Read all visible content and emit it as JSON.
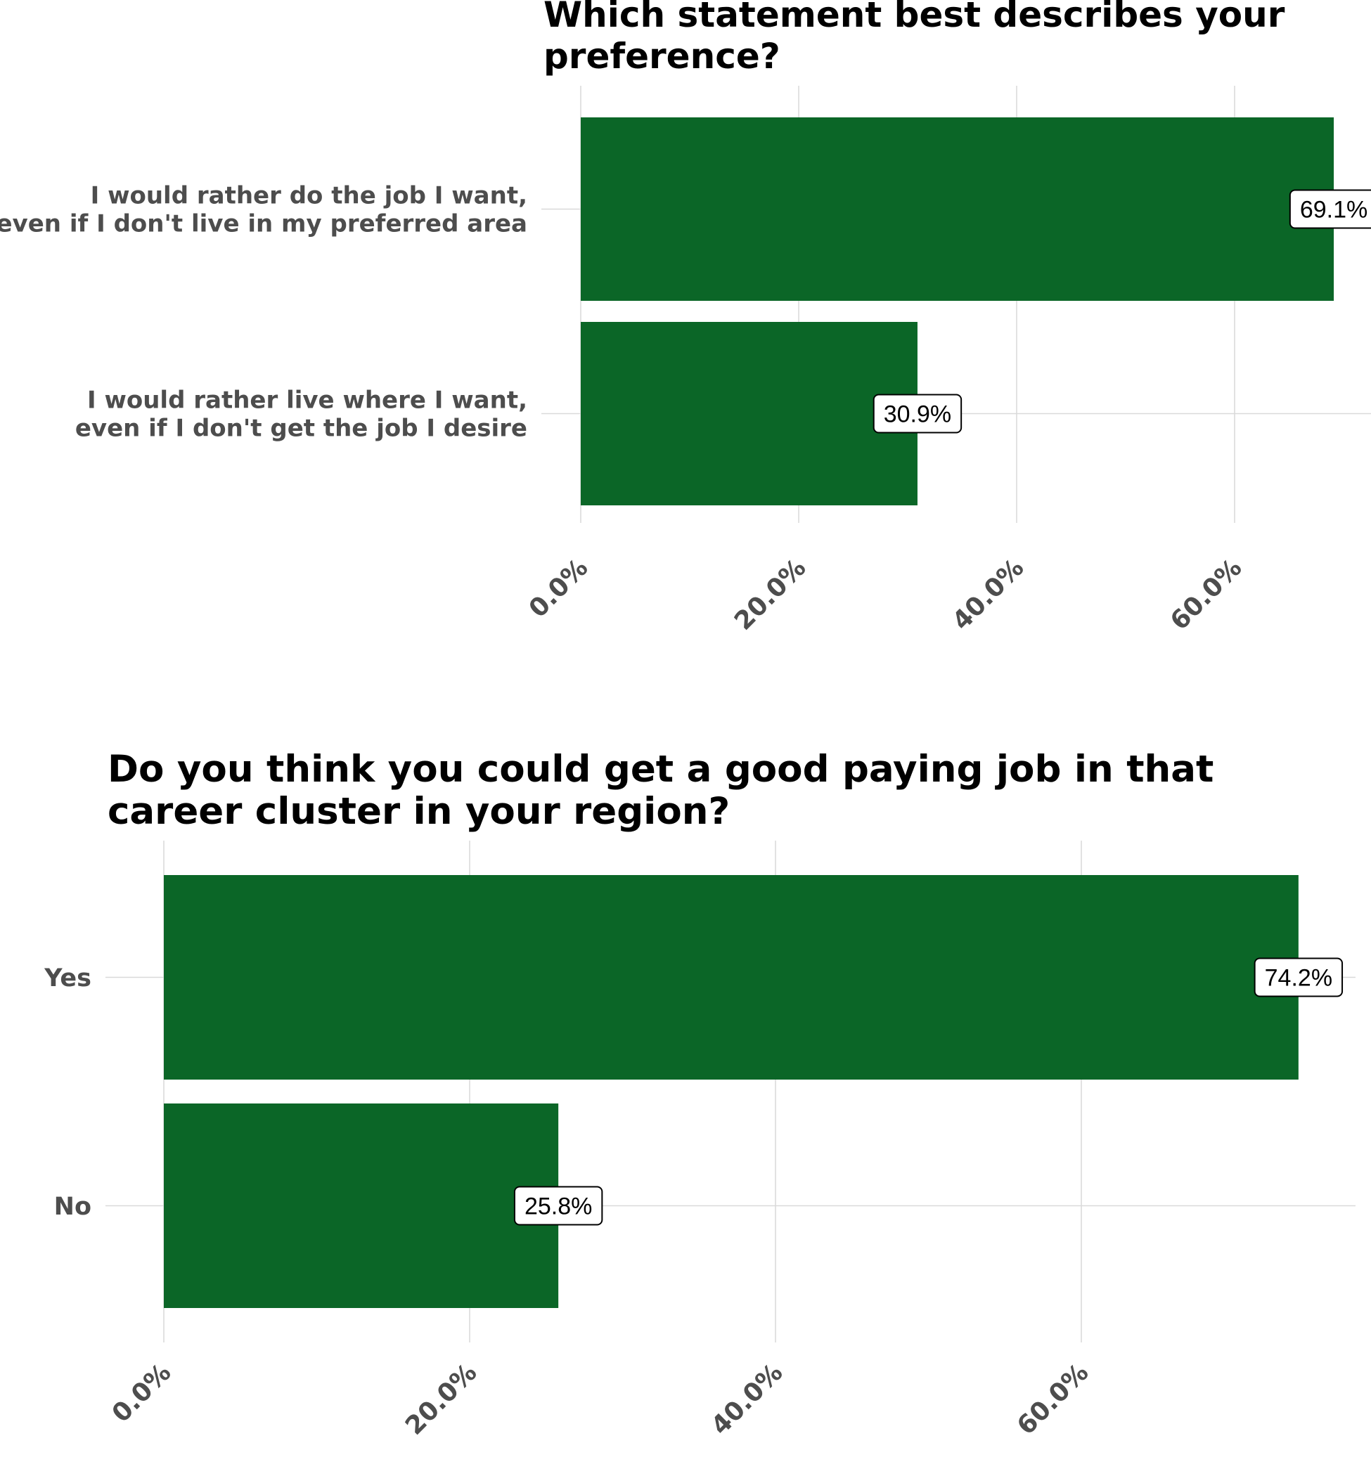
{
  "bar_color": "#0b6627",
  "chart_data": [
    {
      "type": "bar",
      "orientation": "horizontal",
      "title_lines": [
        "Which statement best describes your",
        "preference?"
      ],
      "categories": [
        [
          "I would rather do the job I want,",
          "even if I don't live in my preferred area"
        ],
        [
          "I would rather live where I want,",
          "even if I don't get the job I desire"
        ]
      ],
      "values": [
        69.1,
        30.9
      ],
      "value_labels": [
        "69.1%",
        "30.9%"
      ],
      "xlim": [
        0,
        72
      ],
      "ticks": [
        0,
        20,
        40,
        60
      ],
      "tick_labels": [
        "0.0%",
        "20.0%",
        "40.0%",
        "60.0%"
      ],
      "grid": true
    },
    {
      "type": "bar",
      "orientation": "horizontal",
      "title_lines": [
        "Do you think you could get a good paying job in that",
        "career cluster in your region?"
      ],
      "categories": [
        [
          "Yes"
        ],
        [
          "No"
        ]
      ],
      "values": [
        74.2,
        25.8
      ],
      "value_labels": [
        "74.2%",
        "25.8%"
      ],
      "xlim": [
        0,
        78
      ],
      "ticks": [
        0,
        20,
        40,
        60
      ],
      "tick_labels": [
        "0.0%",
        "20.0%",
        "40.0%",
        "60.0%"
      ],
      "grid": true
    }
  ]
}
